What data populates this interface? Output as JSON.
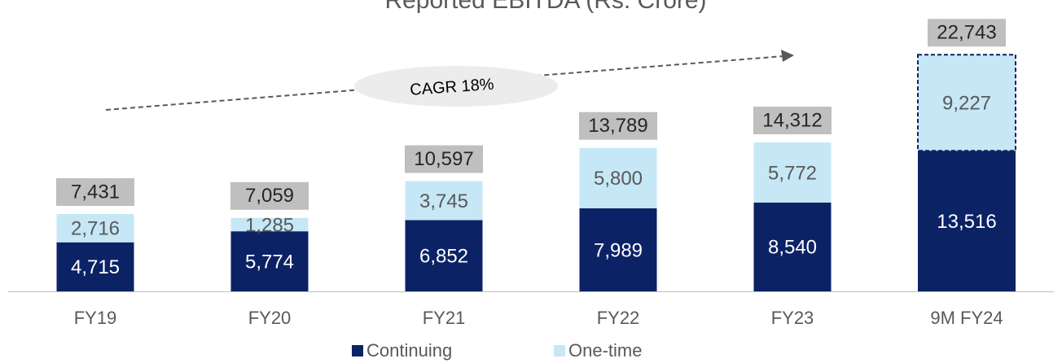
{
  "chart_data": {
    "type": "stacked_bar",
    "title": "Reported EBITDA (Rs. Crore)",
    "categories": [
      "FY19",
      "FY20",
      "FY21",
      "FY22",
      "FY23",
      "9M FY24"
    ],
    "series": [
      {
        "name": "Continuing",
        "color": "#0b2265",
        "values": [
          4715,
          5774,
          6852,
          7989,
          8540,
          13516
        ],
        "value_labels": [
          "4,715",
          "5,774",
          "6,852",
          "7,989",
          "8,540",
          "13,516"
        ]
      },
      {
        "name": "One-time",
        "color": "#c6e7f6",
        "values": [
          2716,
          1285,
          3745,
          5800,
          5772,
          9227
        ],
        "value_labels": [
          "2,716",
          "1,285",
          "3,745",
          "5,800",
          "5,772",
          "9,227"
        ]
      }
    ],
    "totals": {
      "values": [
        7431,
        7059,
        10597,
        13789,
        14312,
        22743
      ],
      "value_labels": [
        "7,431",
        "7,059",
        "10,597",
        "13,789",
        "14,312",
        "22,743"
      ]
    },
    "annotation": "CAGR 18%",
    "ylim": [
      0,
      28000
    ],
    "legend": "bottom"
  }
}
